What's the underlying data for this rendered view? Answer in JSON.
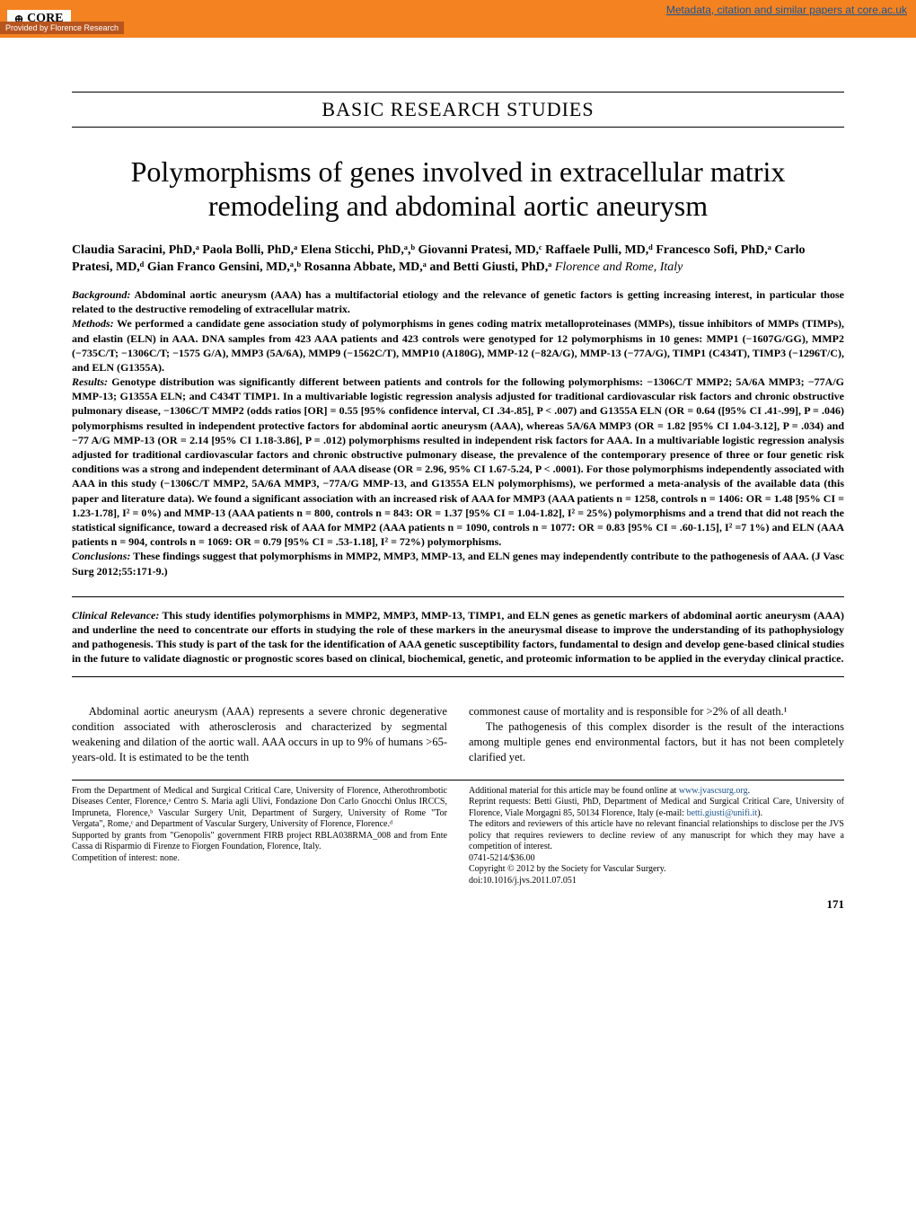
{
  "banner": {
    "logo_text": "CORE",
    "metadata_link": "Metadata, citation and similar papers at core.ac.uk",
    "provided_by": "Provided by Florence Research"
  },
  "section_header": "BASIC RESEARCH STUDIES",
  "title": "Polymorphisms of genes involved in extracellular matrix remodeling and abdominal aortic aneurysm",
  "authors_html": "Claudia Saracini, PhD,ᵃ Paola Bolli, PhD,ᵃ Elena Sticchi, PhD,ᵃ,ᵇ Giovanni Pratesi, MD,ᶜ Raffaele Pulli, MD,ᵈ Francesco Sofi, PhD,ᵃ Carlo Pratesi, MD,ᵈ Gian Franco Gensini, MD,ᵃ,ᵇ Rosanna Abbate, MD,ᵃ and Betti Giusti, PhD,ᵃ",
  "location": "Florence and Rome, Italy",
  "abstract": {
    "background_label": "Background:",
    "background": " Abdominal aortic aneurysm (AAA) has a multifactorial etiology and the relevance of genetic factors is getting increasing interest, in particular those related to the destructive remodeling of extracellular matrix.",
    "methods_label": "Methods:",
    "methods": " We performed a candidate gene association study of polymorphisms in genes coding matrix metalloproteinases (MMPs), tissue inhibitors of MMPs (TIMPs), and elastin (ELN) in AAA. DNA samples from 423 AAA patients and 423 controls were genotyped for 12 polymorphisms in 10 genes: MMP1 (−1607G/GG), MMP2 (−735C/T; −1306C/T; −1575 G/A), MMP3 (5A/6A), MMP9 (−1562C/T), MMP10 (A180G), MMP-12 (−82A/G), MMP-13 (−77A/G), TIMP1 (C434T), TIMP3 (−1296T/C), and ELN (G1355A).",
    "results_label": "Results:",
    "results": " Genotype distribution was significantly different between patients and controls for the following polymorphisms: −1306C/T MMP2; 5A/6A MMP3; −77A/G MMP-13; G1355A ELN; and C434T TIMP1. In a multivariable logistic regression analysis adjusted for traditional cardiovascular risk factors and chronic obstructive pulmonary disease, −1306C/T MMP2 (odds ratios [OR] = 0.55 [95% confidence interval, CI .34-.85], P < .007) and G1355A ELN (OR = 0.64 ([95% CI .41-.99], P = .046) polymorphisms resulted in independent protective factors for abdominal aortic aneurysm (AAA), whereas 5A/6A MMP3 (OR = 1.82 [95% CI 1.04-3.12], P = .034) and −77 A/G MMP-13 (OR = 2.14 [95% CI 1.18-3.86], P = .012) polymorphisms resulted in independent risk factors for AAA. In a multivariable logistic regression analysis adjusted for traditional cardiovascular factors and chronic obstructive pulmonary disease, the prevalence of the contemporary presence of three or four genetic risk conditions was a strong and independent determinant of AAA disease (OR = 2.96, 95% CI 1.67-5.24, P < .0001). For those polymorphisms independently associated with AAA in this study (−1306C/T MMP2, 5A/6A MMP3, −77A/G MMP-13, and G1355A ELN polymorphisms), we performed a meta-analysis of the available data (this paper and literature data). We found a significant association with an increased risk of AAA for MMP3 (AAA patients n = 1258, controls n = 1406: OR = 1.48 [95% CI = 1.23-1.78], I² = 0%) and MMP-13 (AAA patients n = 800, controls n = 843: OR = 1.37 [95% CI = 1.04-1.82], I² = 25%) polymorphisms and a trend that did not reach the statistical significance, toward a decreased risk of AAA for MMP2 (AAA patients n = 1090, controls n = 1077: OR = 0.83 [95% CI = .60-1.15], I² =7 1%) and ELN (AAA patients n = 904, controls n = 1069: OR = 0.79 [95% CI = .53-1.18], I² = 72%) polymorphisms.",
    "conclusions_label": "Conclusions:",
    "conclusions": " These findings suggest that polymorphisms in MMP2, MMP3, MMP-13, and ELN genes may independently contribute to the pathogenesis of AAA. (J Vasc Surg 2012;55:171-9.)"
  },
  "relevance": {
    "label": "Clinical Relevance:",
    "text": " This study identifies polymorphisms in MMP2, MMP3, MMP-13, TIMP1, and ELN genes as genetic markers of abdominal aortic aneurysm (AAA) and underline the need to concentrate our efforts in studying the role of these markers in the aneurysmal disease to improve the understanding of its pathophysiology and pathogenesis. This study is part of the task for the identification of AAA genetic susceptibility factors, fundamental to design and develop gene-based clinical studies in the future to validate diagnostic or prognostic scores based on clinical, biochemical, genetic, and proteomic information to be applied in the everyday clinical practice."
  },
  "body": {
    "col1": "Abdominal aortic aneurysm (AAA) represents a severe chronic degenerative condition associated with atherosclerosis and characterized by segmental weakening and dilation of the aortic wall. AAA occurs in up to 9% of humans >65-years-old. It is estimated to be the tenth",
    "col2a": "commonest cause of mortality and is responsible for >2% of all death.¹",
    "col2b": "The pathogenesis of this complex disorder is the result of the interactions among multiple genes end environmental factors, but it has not been completely clarified yet."
  },
  "footnotes": {
    "left": [
      "From the Department of Medical and Surgical Critical Care, University of Florence, Atherothrombotic Diseases Center, Florence,ᵃ Centro S. Maria agli Ulivi, Fondazione Don Carlo Gnocchi Onlus IRCCS, Impruneta, Florence,ᵇ Vascular Surgery Unit, Department of Surgery, University of Rome \"Tor Vergata\", Rome,ᶜ and Department of Vascular Surgery, University of Florence, Florence.ᵈ",
      "Supported by grants from \"Genopolis\" government FIRB project RBLA038RMA_008 and from Ente Cassa di Risparmio di Firenze to Fiorgen Foundation, Florence, Italy.",
      "Competition of interest: none."
    ],
    "right_pre": "Additional material for this article may be found online at ",
    "right_link1": "www.jvascsurg.org",
    "right_dot": ".",
    "right_reprint_pre": "Reprint requests: Betti Giusti, PhD, Department of Medical and Surgical Critical Care, University of Florence, Viale Morgagni 85, 50134 Florence, Italy (e-mail: ",
    "right_link2": "betti.giusti@unifi.it",
    "right_reprint_post": ").",
    "right_editors": "The editors and reviewers of this article have no relevant financial relationships to disclose per the JVS policy that requires reviewers to decline review of any manuscript for which they may have a competition of interest.",
    "right_issn": "0741-5214/$36.00",
    "right_copyright": "Copyright © 2012 by the Society for Vascular Surgery.",
    "right_doi": "doi:10.1016/j.jvs.2011.07.051"
  },
  "pagenum": "171",
  "colors": {
    "banner_bg": "#f58220",
    "provided_bg": "#b8551f",
    "link": "#1a5490"
  }
}
